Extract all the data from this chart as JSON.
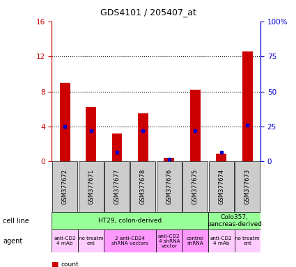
{
  "title": "GDS4101 / 205407_at",
  "samples": [
    "GSM377672",
    "GSM377671",
    "GSM377677",
    "GSM377678",
    "GSM377676",
    "GSM377675",
    "GSM377674",
    "GSM377673"
  ],
  "count_values": [
    9.0,
    6.2,
    3.2,
    5.5,
    0.4,
    8.2,
    0.9,
    12.6
  ],
  "percentile_values": [
    25.0,
    22.0,
    6.5,
    22.0,
    1.5,
    22.0,
    6.5,
    26.0
  ],
  "ylim_left": [
    0,
    16
  ],
  "ylim_right": [
    0,
    100
  ],
  "yticks_left": [
    0,
    4,
    8,
    12,
    16
  ],
  "yticks_right": [
    0,
    25,
    50,
    75,
    100
  ],
  "ytick_labels_right": [
    "0",
    "25",
    "50",
    "75",
    "100%"
  ],
  "bar_color": "#cc0000",
  "dot_color": "#0000cc",
  "cell_line_color": "#99ff99",
  "cell_line_groups": [
    {
      "label": "HT29, colon-derived",
      "start": 0,
      "end": 6,
      "color": "#99ff99"
    },
    {
      "label": "Colo357,\npancreas-derived",
      "start": 6,
      "end": 8,
      "color": "#99ff99"
    }
  ],
  "agent_groups": [
    {
      "label": "anti-CD2\n4 mAb",
      "start": 0,
      "end": 1,
      "color": "#ffccff"
    },
    {
      "label": "no treatm\nent",
      "start": 1,
      "end": 2,
      "color": "#ffccff"
    },
    {
      "label": "2 anti-CD24\nshRNA vectors",
      "start": 2,
      "end": 4,
      "color": "#ff99ff"
    },
    {
      "label": "anti-CD2\n4 shRNA\nvector",
      "start": 4,
      "end": 5,
      "color": "#ff99ff"
    },
    {
      "label": "control\nshRNA",
      "start": 5,
      "end": 6,
      "color": "#ff99ff"
    },
    {
      "label": "anti-CD2\n4 mAb",
      "start": 6,
      "end": 7,
      "color": "#ffccff"
    },
    {
      "label": "no treatm\nent",
      "start": 7,
      "end": 8,
      "color": "#ffccff"
    }
  ],
  "legend_count_color": "#cc0000",
  "legend_dot_color": "#0000cc",
  "left_axis_color": "#cc0000",
  "right_axis_color": "#0000cc",
  "sample_bg_color": "#cccccc",
  "dotted_line_color": "#000000"
}
